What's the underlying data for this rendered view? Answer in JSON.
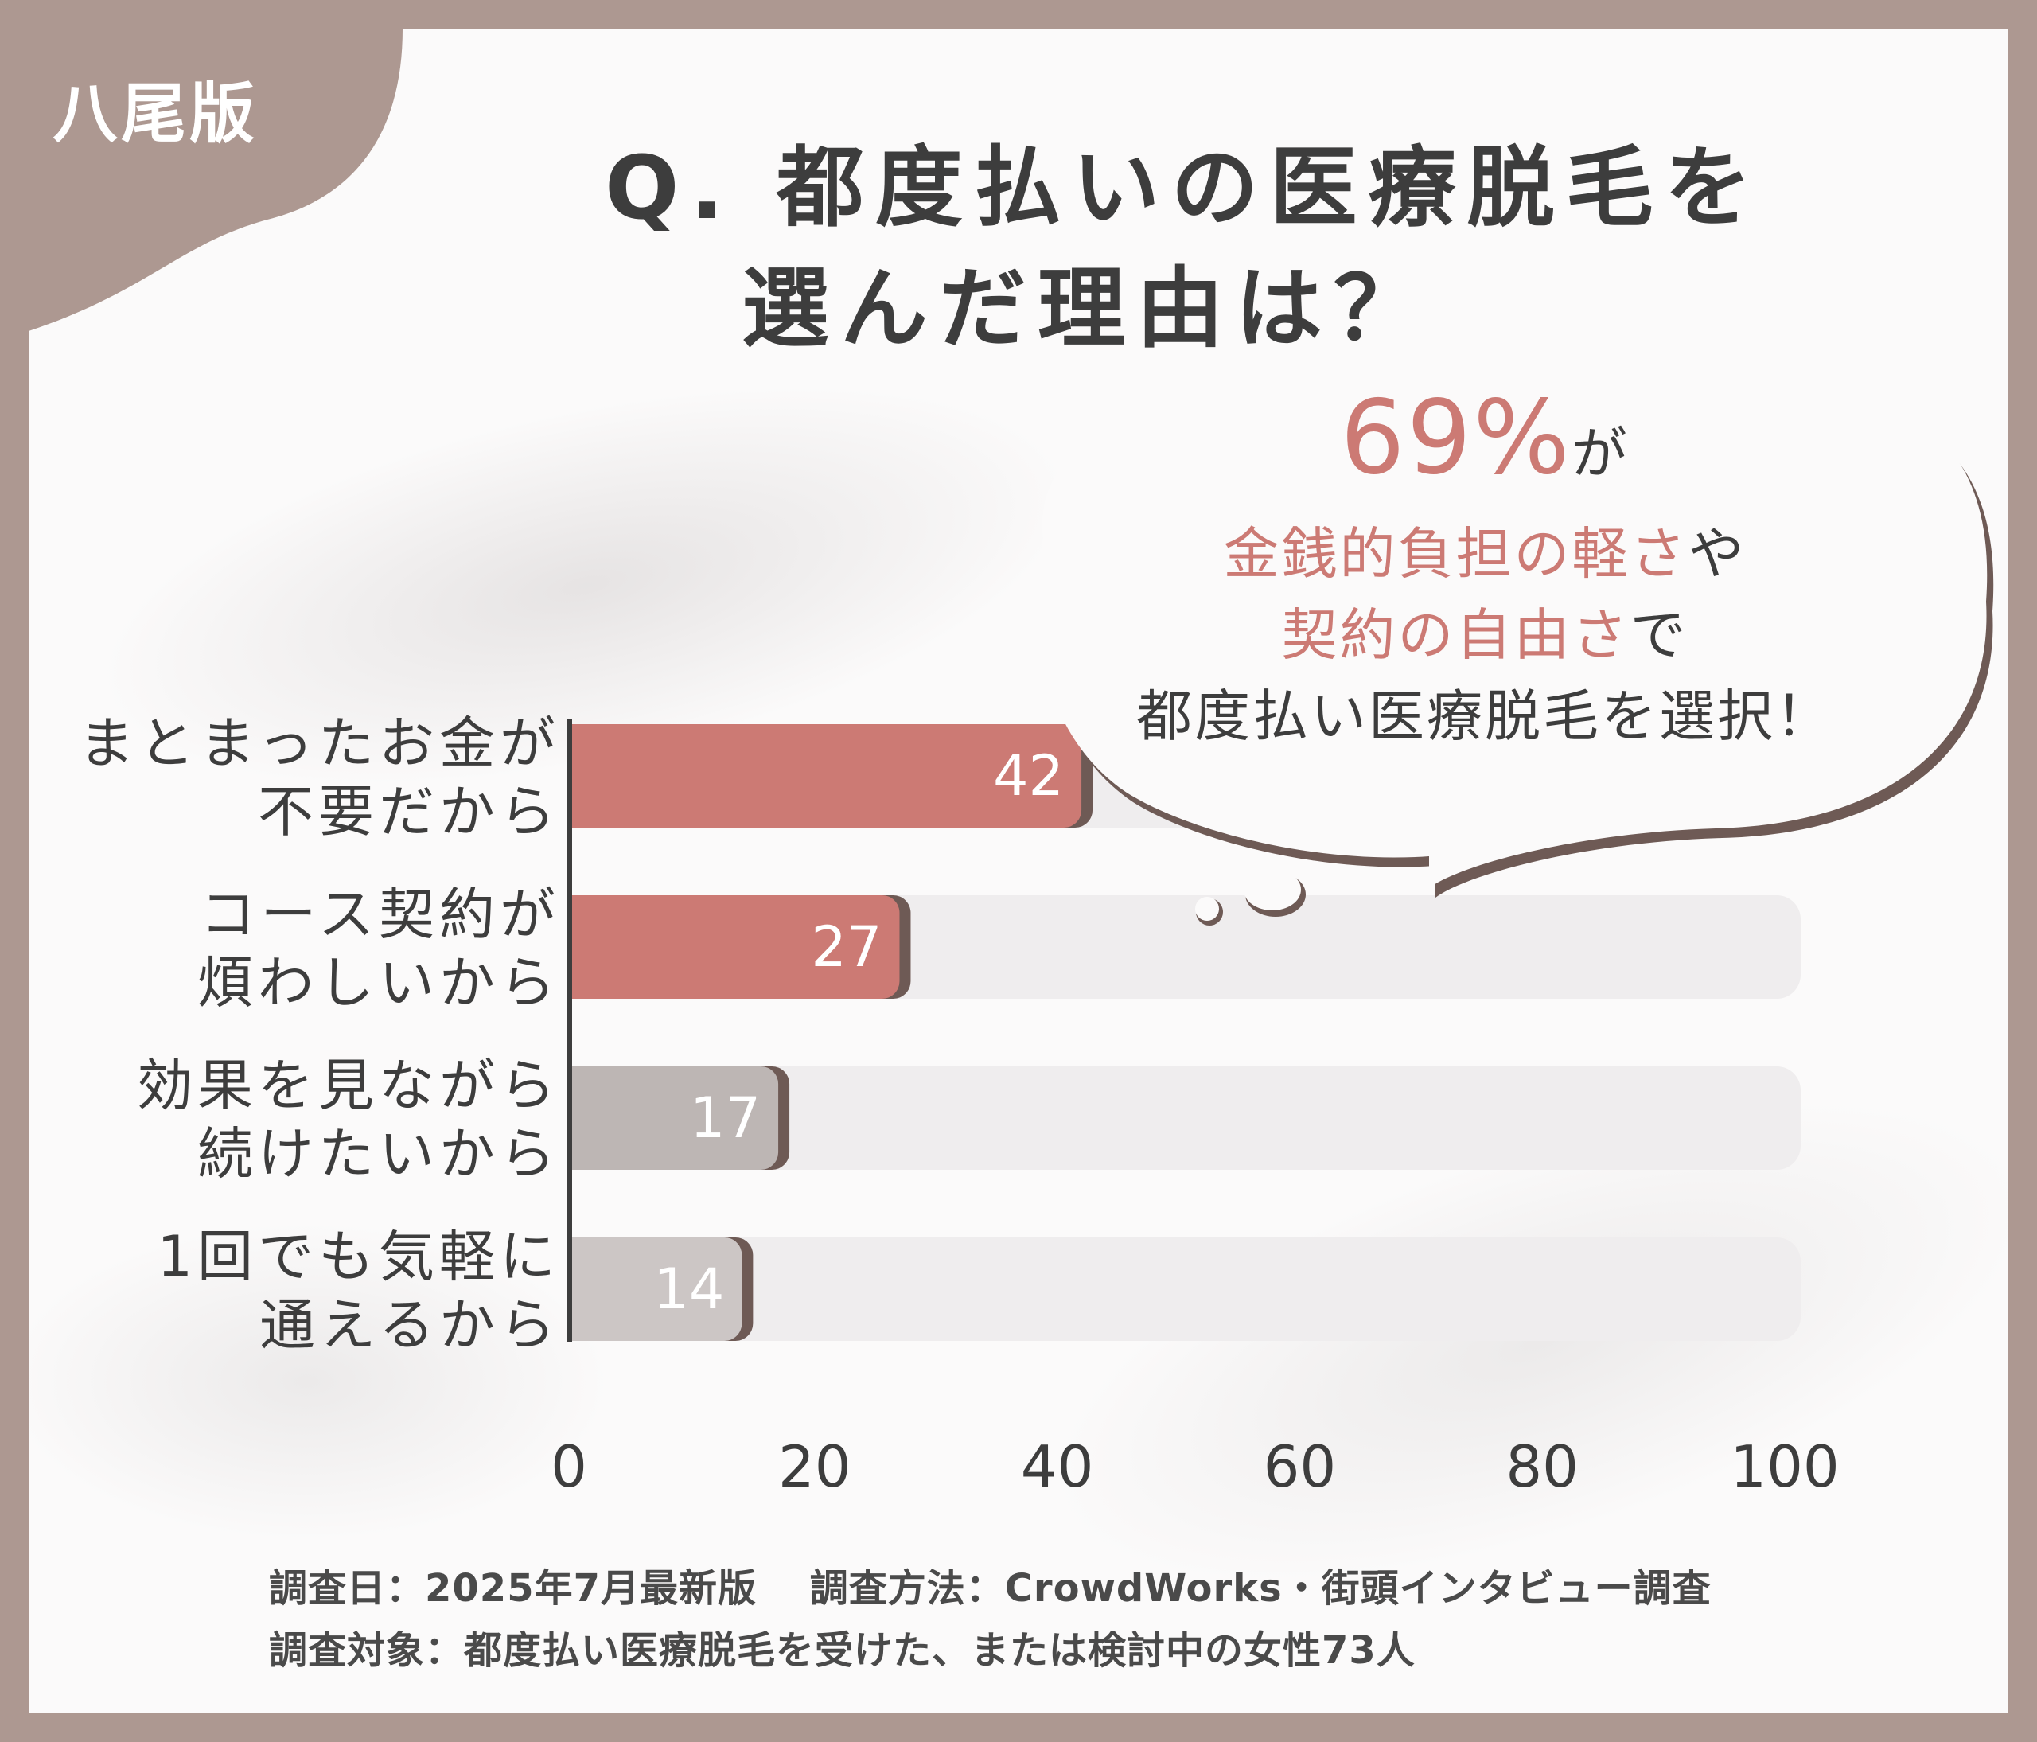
{
  "badge": "八尾版",
  "title": {
    "line1": "Q. 都度払いの医療脱毛を",
    "line2": "選んだ理由は？"
  },
  "callout": {
    "percent": "69%",
    "percent_suffix": "が",
    "line2_accent": "金銭的負担の軽さ",
    "line2_rest": "や",
    "line3_accent": "契約の自由さ",
    "line3_rest": "で",
    "line4": "都度払い医療脱毛を選択！"
  },
  "footer": {
    "line1": "調査日：2025年7月最新版　 調査方法：CrowdWorks・街頭インタビュー調査",
    "line2": "調査対象：都度払い医療脱毛を受けた、または検討中の女性73人"
  },
  "colors": {
    "frame": "#ad9891",
    "bar_highlight": "#cc7a74",
    "bar_muted": "#bdb6b4",
    "bar_muted_light": "#ccc6c5",
    "track": "#efedee",
    "text": "#3d3d3d",
    "accent_text": "#cc7a74"
  },
  "chart_data": {
    "type": "bar",
    "orientation": "horizontal",
    "categories": [
      [
        "まとまったお金が",
        "不要だから"
      ],
      [
        "コース契約が",
        "煩わしいから"
      ],
      [
        "効果を見ながら",
        "続けたいから"
      ],
      [
        "1回でも気軽に",
        "通えるから"
      ]
    ],
    "values": [
      42,
      27,
      17,
      14
    ],
    "value_labels": [
      "42",
      "27",
      "17",
      "14"
    ],
    "xlim": [
      0,
      100
    ],
    "xticks": [
      0,
      20,
      40,
      60,
      80,
      100
    ],
    "tick_labels": [
      "0",
      "20",
      "40",
      "60",
      "80",
      "100"
    ],
    "highlight": [
      true,
      true,
      false,
      false
    ],
    "grid": false,
    "legend": "none"
  }
}
